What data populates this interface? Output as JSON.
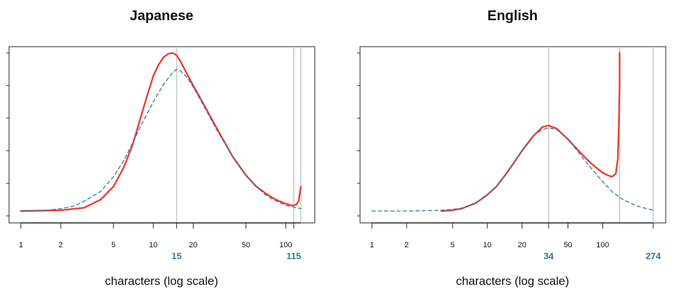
{
  "chart_data": [
    {
      "type": "line",
      "title": "Japanese",
      "xlabel": "characters (log scale)",
      "xscale": "log",
      "xlim": [
        1,
        130
      ],
      "ylim": [
        0,
        1
      ],
      "x_ticks": [
        1,
        2,
        5,
        10,
        20,
        50,
        100
      ],
      "x_tick_labels": [
        "1",
        "2",
        "5",
        "10",
        "20",
        "50",
        "100"
      ],
      "markers": [
        {
          "label": "15",
          "x": 15
        },
        {
          "label": "115",
          "x": 115
        }
      ],
      "extra_vlines": [
        130
      ],
      "colors": {
        "observed": "#ee3b33",
        "fitted": "#2b7aa0",
        "vline": "#c8c8c8"
      },
      "series": [
        {
          "style": "solid",
          "x": [
            1,
            2,
            3,
            4,
            5,
            6,
            7,
            8,
            9,
            10,
            11,
            12,
            13,
            14,
            15,
            16,
            18,
            20,
            25,
            30,
            40,
            50,
            60,
            70,
            80,
            90,
            100,
            110,
            115,
            120,
            125,
            130
          ],
          "y": [
            0.03,
            0.035,
            0.05,
            0.1,
            0.18,
            0.3,
            0.44,
            0.6,
            0.74,
            0.86,
            0.93,
            0.975,
            0.995,
            1.0,
            0.985,
            0.95,
            0.87,
            0.8,
            0.66,
            0.54,
            0.36,
            0.25,
            0.18,
            0.14,
            0.11,
            0.09,
            0.075,
            0.065,
            0.065,
            0.07,
            0.09,
            0.18
          ]
        },
        {
          "style": "dashed",
          "x": [
            1,
            1.5,
            2,
            2.5,
            3,
            4,
            5,
            6,
            7,
            8,
            10,
            12,
            14,
            15,
            16,
            18,
            20,
            25,
            30,
            40,
            50,
            60,
            70,
            80,
            100,
            120,
            130
          ],
          "y": [
            0.03,
            0.033,
            0.045,
            0.06,
            0.09,
            0.15,
            0.24,
            0.34,
            0.45,
            0.55,
            0.7,
            0.81,
            0.88,
            0.9,
            0.89,
            0.85,
            0.79,
            0.65,
            0.53,
            0.36,
            0.25,
            0.18,
            0.13,
            0.1,
            0.065,
            0.05,
            0.045
          ]
        }
      ]
    },
    {
      "type": "line",
      "title": "English",
      "xlabel": "characters (log scale)",
      "xscale": "log",
      "xlim": [
        1,
        274
      ],
      "ylim": [
        0,
        1
      ],
      "x_ticks": [
        1,
        2,
        5,
        10,
        20,
        50,
        100
      ],
      "x_tick_labels": [
        "1",
        "2",
        "5",
        "10",
        "20",
        "50",
        "100"
      ],
      "markers": [
        {
          "label": "34",
          "x": 34
        },
        {
          "label": "274",
          "x": 274
        }
      ],
      "extra_vlines": [
        140
      ],
      "colors": {
        "observed": "#ee3b33",
        "fitted": "#2b7aa0",
        "vline": "#c8c8c8"
      },
      "series": [
        {
          "style": "solid",
          "x": [
            4,
            5,
            6,
            8,
            10,
            12,
            15,
            20,
            25,
            30,
            34,
            40,
            50,
            60,
            70,
            80,
            90,
            100,
            110,
            120,
            130,
            135,
            138,
            140,
            140
          ],
          "y": [
            0.03,
            0.035,
            0.045,
            0.08,
            0.13,
            0.18,
            0.27,
            0.4,
            0.49,
            0.545,
            0.555,
            0.535,
            0.47,
            0.41,
            0.36,
            0.32,
            0.29,
            0.265,
            0.25,
            0.24,
            0.26,
            0.35,
            0.55,
            0.8,
            1.0
          ]
        },
        {
          "style": "dashed",
          "x": [
            1,
            2,
            3,
            4,
            5,
            6,
            8,
            10,
            12,
            15,
            20,
            25,
            30,
            34,
            40,
            50,
            60,
            70,
            80,
            100,
            120,
            150,
            200,
            274
          ],
          "y": [
            0.03,
            0.03,
            0.032,
            0.035,
            0.04,
            0.048,
            0.08,
            0.13,
            0.18,
            0.27,
            0.4,
            0.49,
            0.53,
            0.54,
            0.53,
            0.47,
            0.4,
            0.34,
            0.29,
            0.21,
            0.15,
            0.1,
            0.06,
            0.035
          ]
        }
      ]
    }
  ]
}
